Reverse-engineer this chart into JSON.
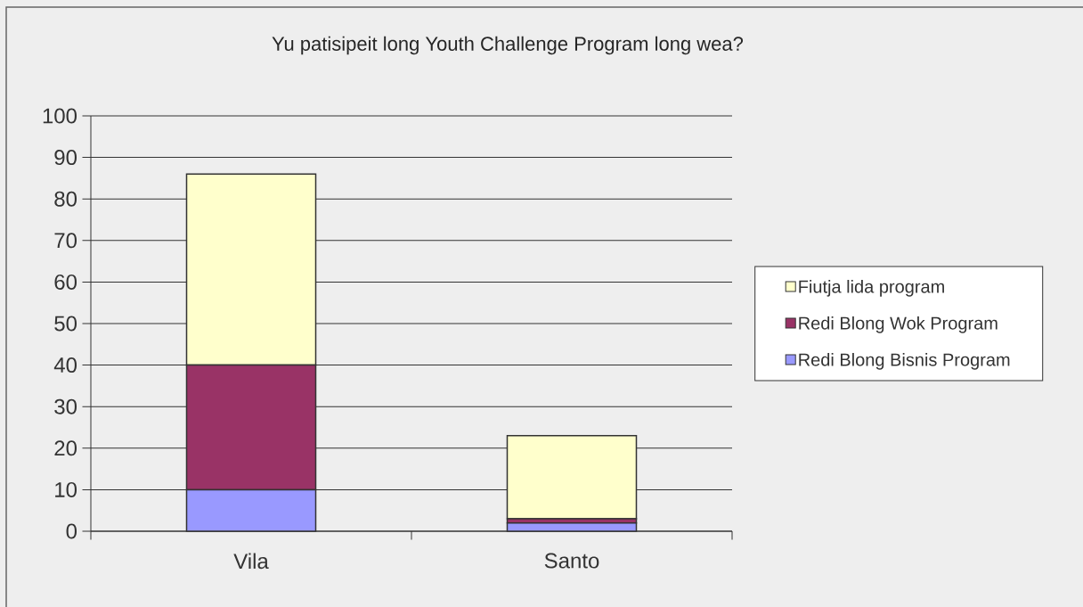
{
  "chart_data": {
    "type": "bar",
    "title": "Yu patisipeit long Youth Challenge Program long wea?",
    "categories": [
      "Vila",
      "Santo"
    ],
    "stacked": true,
    "series": [
      {
        "name": "Redi Blong Bisnis Program",
        "color": "#9999ff",
        "values": [
          10,
          2
        ]
      },
      {
        "name": "Redi Blong Wok Program",
        "color": "#993366",
        "values": [
          30,
          1
        ]
      },
      {
        "name": "Fiutja lida program",
        "color": "#ffffcc",
        "values": [
          46,
          20
        ]
      }
    ],
    "ylim": [
      0,
      100
    ],
    "yticks": [
      0,
      10,
      20,
      30,
      40,
      50,
      60,
      70,
      80,
      90,
      100
    ],
    "grid": "y",
    "legend": "right"
  }
}
